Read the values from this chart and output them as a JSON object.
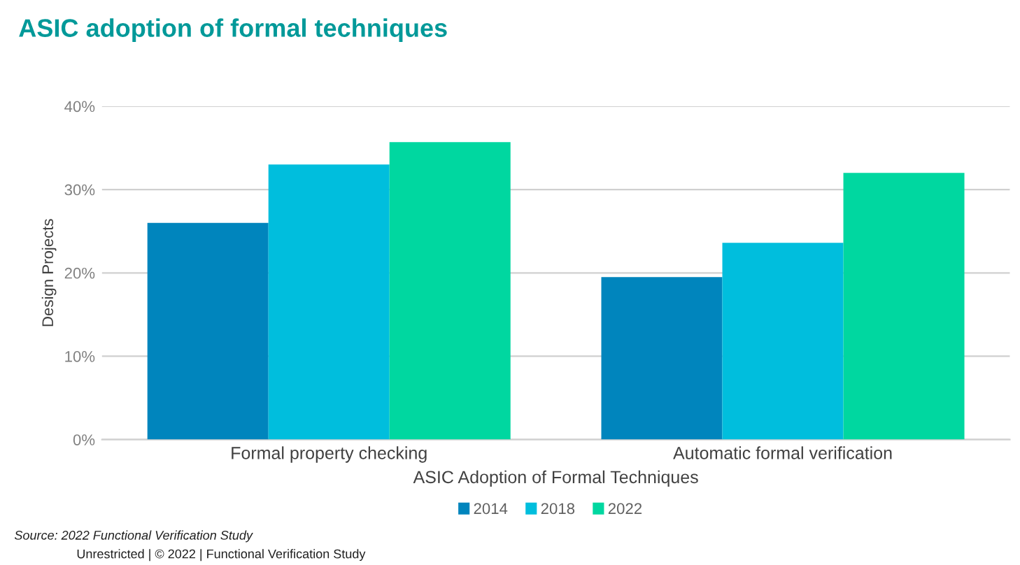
{
  "chart_data": {
    "type": "bar",
    "title": "ASIC adoption of formal techniques",
    "categories": [
      "Formal property checking",
      "Automatic formal verification"
    ],
    "series": [
      {
        "name": "2014",
        "color": "#0085bd",
        "values": [
          26,
          19.5
        ]
      },
      {
        "name": "2018",
        "color": "#00bedd",
        "values": [
          33,
          23.6
        ]
      },
      {
        "name": "2022",
        "color": "#00d7a0",
        "values": [
          35.7,
          32
        ]
      }
    ],
    "xlabel": "ASIC Adoption of Formal Techniques",
    "ylabel": "Design Projects",
    "ylim": [
      0,
      40
    ],
    "yticks": [
      {
        "value": 0,
        "label": "0%"
      },
      {
        "value": 10,
        "label": "10%"
      },
      {
        "value": 20,
        "label": "20%"
      },
      {
        "value": 30,
        "label": "30%"
      },
      {
        "value": 40,
        "label": "40%"
      }
    ],
    "grid": "y",
    "legend": "bottom",
    "annotations": [
      "Source: 2022 Functional Verification Study",
      "Unrestricted | © 2022 | Functional Verification Study"
    ]
  }
}
